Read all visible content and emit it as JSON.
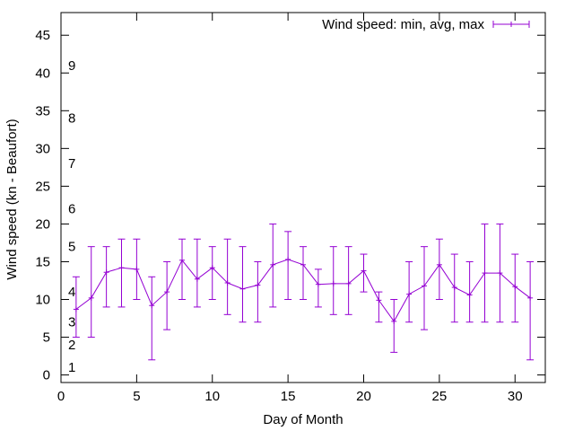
{
  "chart_data": {
    "type": "line",
    "xlabel": "Day of Month",
    "ylabel": "Wind speed (kn - Beaufort)",
    "xlim": [
      0,
      32
    ],
    "ylim": [
      -1,
      48
    ],
    "xticks": [
      0,
      5,
      10,
      15,
      20,
      25,
      30
    ],
    "yticks": [
      0,
      5,
      10,
      15,
      20,
      25,
      30,
      35,
      40,
      45
    ],
    "grid": false,
    "legend_position": "top-right",
    "series_color": "#9400d3",
    "series": [
      {
        "name": "Wind speed: min, avg, max",
        "x": [
          1,
          2,
          3,
          4,
          5,
          6,
          7,
          8,
          9,
          10,
          11,
          12,
          13,
          14,
          15,
          16,
          17,
          18,
          19,
          20,
          21,
          22,
          23,
          24,
          25,
          26,
          27,
          28,
          29,
          30,
          31
        ],
        "avg": [
          8.7,
          10.2,
          13.6,
          14.2,
          14.0,
          9.2,
          11.0,
          15.2,
          12.7,
          14.2,
          12.2,
          11.4,
          11.9,
          14.6,
          15.3,
          14.6,
          12.0,
          12.1,
          12.1,
          13.8,
          9.9,
          7.1,
          10.7,
          11.8,
          14.6,
          11.6,
          10.6,
          13.5,
          13.5,
          11.7,
          10.2
        ],
        "min": [
          5,
          5,
          9,
          9,
          10,
          2,
          6,
          10,
          9,
          10,
          8,
          7,
          7,
          9,
          10,
          10,
          9,
          8,
          8,
          11,
          7,
          3,
          7,
          6,
          10,
          7,
          7,
          7,
          7,
          7,
          2
        ],
        "max": [
          13,
          17,
          17,
          18,
          18,
          13,
          15,
          18,
          18,
          17,
          18,
          17,
          15,
          20,
          19,
          17,
          14,
          17,
          17,
          16,
          11,
          10,
          15,
          17,
          18,
          16,
          15,
          20,
          20,
          16,
          15
        ]
      }
    ],
    "beaufort_labels": [
      {
        "label": "1",
        "y": 1
      },
      {
        "label": "2",
        "y": 4
      },
      {
        "label": "3",
        "y": 7
      },
      {
        "label": "4",
        "y": 11
      },
      {
        "label": "5",
        "y": 17
      },
      {
        "label": "6",
        "y": 22
      },
      {
        "label": "7",
        "y": 28
      },
      {
        "label": "8",
        "y": 34
      },
      {
        "label": "9",
        "y": 41
      }
    ]
  }
}
